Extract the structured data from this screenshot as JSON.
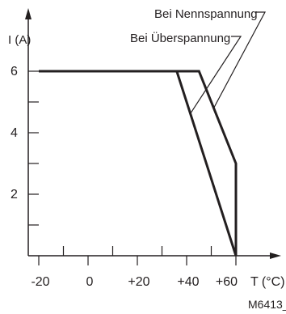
{
  "chart_data": {
    "type": "line",
    "ylabel": "I (A)",
    "xlabel_unit": "T (°C)",
    "xlim": [
      -20,
      60
    ],
    "ylim": [
      0,
      6
    ],
    "x_tick_labels": [
      {
        "x": -20,
        "label": "-20"
      },
      {
        "x": 0,
        "label": "0"
      },
      {
        "x": 20,
        "label": "+20"
      },
      {
        "x": 40,
        "label": "+40"
      },
      {
        "x": 60,
        "label": "+60"
      }
    ],
    "y_tick_labels": [
      {
        "y": 2,
        "label": "2"
      },
      {
        "y": 4,
        "label": "4"
      },
      {
        "y": 6,
        "label": "6"
      }
    ],
    "x_minor_ticks": [
      -10,
      10,
      30,
      50
    ],
    "y_minor_ticks": [
      1,
      3,
      5
    ],
    "grid": false,
    "series": [
      {
        "name": "Bei Nennspannung",
        "points": [
          [
            -20,
            6
          ],
          [
            45,
            6
          ],
          [
            60,
            3
          ],
          [
            60,
            0
          ]
        ]
      },
      {
        "name": "Bei Überspannung",
        "points": [
          [
            -20,
            6
          ],
          [
            36,
            6
          ],
          [
            60,
            0
          ]
        ]
      }
    ],
    "annotations": [
      {
        "text": "Bei Nennspannung",
        "points_to_series": 0
      },
      {
        "text": "Bei Überspannung",
        "points_to_series": 1
      }
    ],
    "figure_id": "M6413_b",
    "colors": {
      "line": "#231f20",
      "background": "#ffffff"
    }
  }
}
